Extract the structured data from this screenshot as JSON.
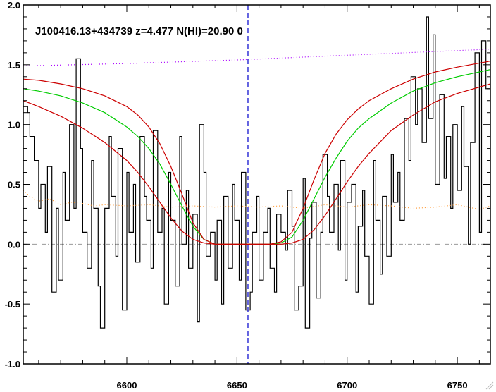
{
  "chart_data": {
    "type": "line",
    "title": "J100416.13+434739 z=4.477 N(HI)=20.90 0",
    "xlabel": "",
    "ylabel": "",
    "xlim": [
      6553,
      6765
    ],
    "ylim": [
      -1.0,
      2.0
    ],
    "x_ticks": [
      6600,
      6650,
      6700,
      6750
    ],
    "y_ticks": [
      -1.0,
      -0.5,
      0.0,
      0.5,
      1.0,
      1.5,
      2.0
    ],
    "y_tick_labels": [
      "-1.0",
      "-0.5",
      "0.0",
      "0.5",
      "1.0",
      "1.5",
      "2.0"
    ],
    "center_line_x": 6655,
    "zero_line_y": 0.0,
    "grid": false,
    "legend": "none",
    "colors": {
      "flux": "#000000",
      "fit": "#00cc00",
      "bounds": "#cc0000",
      "continuum": "#aa00ff",
      "error": "#ff9933",
      "center": "#0000cc",
      "zero": "#999999"
    },
    "series": [
      {
        "style": "step",
        "color": "#000000",
        "x": [
          6553,
          6555,
          6556,
          6558,
          6560,
          6561,
          6563,
          6564,
          6566,
          6568,
          6569,
          6571,
          6572,
          6574,
          6576,
          6577,
          6579,
          6580,
          6582,
          6584,
          6585,
          6587,
          6588,
          6590,
          6592,
          6593,
          6595,
          6596,
          6598,
          6600,
          6601,
          6603,
          6604,
          6606,
          6608,
          6609,
          6611,
          6612,
          6614,
          6616,
          6617,
          6619,
          6620,
          6622,
          6624,
          6625,
          6627,
          6628,
          6630,
          6632,
          6633,
          6635,
          6636,
          6638,
          6640,
          6641,
          6643,
          6644,
          6646,
          6648,
          6649,
          6651,
          6652,
          6654,
          6656,
          6657,
          6659,
          6660,
          6662,
          6664,
          6665,
          6667,
          6668,
          6670,
          6672,
          6673,
          6675,
          6676,
          6678,
          6680,
          6681,
          6683,
          6684,
          6686,
          6688,
          6689,
          6691,
          6692,
          6694,
          6696,
          6697,
          6699,
          6700,
          6702,
          6704,
          6705,
          6707,
          6708,
          6710,
          6712,
          6713,
          6715,
          6716,
          6718,
          6720,
          6721,
          6723,
          6724,
          6726,
          6728,
          6729,
          6731,
          6732,
          6734,
          6736,
          6737,
          6739,
          6740,
          6742,
          6744,
          6745,
          6747,
          6748,
          6750,
          6752,
          6753,
          6755,
          6756,
          6758,
          6760,
          6761,
          6763,
          6765
        ],
        "y": [
          1.15,
          1.1,
          0.9,
          0.7,
          0.3,
          0.5,
          0.1,
          0.65,
          -0.4,
          0.3,
          -0.3,
          0.6,
          0.2,
          1.0,
          0.3,
          1.55,
          0.8,
          0.1,
          -0.2,
          0.7,
          0.3,
          -0.35,
          -0.7,
          0.3,
          0.9,
          0.4,
          -0.1,
          0.8,
          -0.55,
          0.6,
          0.1,
          0.5,
          -0.15,
          0.9,
          0.4,
          0.2,
          -0.2,
          0.95,
          0.1,
          0.3,
          -0.5,
          0.6,
          0.2,
          -0.35,
          0.9,
          0.0,
          0.45,
          -0.2,
          0.25,
          -0.65,
          1.0,
          0.6,
          -0.1,
          0.1,
          -0.3,
          0.2,
          -0.5,
          0.4,
          -0.2,
          0.5,
          0.2,
          -0.3,
          0.6,
          -0.55,
          -0.4,
          0.1,
          0.4,
          -0.3,
          0.1,
          0.3,
          -0.2,
          -0.4,
          0.25,
          0.1,
          -0.05,
          0.45,
          0.15,
          -0.55,
          -0.35,
          0.55,
          -0.7,
          0.05,
          0.35,
          -0.45,
          0.1,
          0.75,
          0.4,
          0.1,
          0.5,
          -0.05,
          0.7,
          -0.3,
          0.35,
          0.5,
          -0.4,
          0.15,
          0.45,
          -0.1,
          -0.5,
          0.7,
          0.2,
          -0.25,
          0.4,
          -0.1,
          0.75,
          0.35,
          0.6,
          0.2,
          1.05,
          0.7,
          1.4,
          1.0,
          1.3,
          0.85,
          1.9,
          1.05,
          1.75,
          0.5,
          1.25,
          0.55,
          0.9,
          0.3,
          1.0,
          0.45,
          1.15,
          0.65,
          0.0,
          0.85,
          1.6,
          0.1,
          1.7,
          1.3,
          1.0
        ]
      },
      {
        "style": "line",
        "color": "#00cc00",
        "x": [
          6553,
          6560,
          6570,
          6580,
          6590,
          6600,
          6605,
          6610,
          6615,
          6620,
          6625,
          6630,
          6635,
          6640,
          6645,
          6650,
          6655,
          6660,
          6665,
          6670,
          6675,
          6680,
          6685,
          6690,
          6695,
          6700,
          6705,
          6710,
          6720,
          6730,
          6740,
          6750,
          6765
        ],
        "y": [
          1.3,
          1.28,
          1.24,
          1.18,
          1.1,
          0.98,
          0.9,
          0.8,
          0.67,
          0.5,
          0.32,
          0.15,
          0.04,
          0.0,
          0.0,
          0.0,
          0.0,
          0.0,
          0.0,
          0.01,
          0.06,
          0.2,
          0.38,
          0.56,
          0.72,
          0.86,
          0.97,
          1.05,
          1.18,
          1.28,
          1.35,
          1.4,
          1.46
        ]
      },
      {
        "style": "line",
        "color": "#cc0000",
        "x": [
          6553,
          6560,
          6570,
          6580,
          6590,
          6600,
          6605,
          6610,
          6615,
          6620,
          6625,
          6630,
          6635,
          6640,
          6645,
          6650,
          6655,
          6660,
          6665,
          6670,
          6675,
          6680,
          6685,
          6690,
          6695,
          6700,
          6705,
          6710,
          6720,
          6730,
          6740,
          6750,
          6765
        ],
        "y": [
          1.38,
          1.37,
          1.34,
          1.3,
          1.24,
          1.15,
          1.08,
          0.98,
          0.84,
          0.65,
          0.42,
          0.18,
          0.04,
          0.0,
          0.0,
          0.0,
          0.0,
          0.0,
          0.0,
          0.02,
          0.1,
          0.3,
          0.54,
          0.76,
          0.92,
          1.04,
          1.13,
          1.2,
          1.3,
          1.38,
          1.44,
          1.48,
          1.53
        ]
      },
      {
        "style": "line",
        "color": "#cc0000",
        "x": [
          6553,
          6560,
          6570,
          6580,
          6590,
          6600,
          6605,
          6610,
          6615,
          6620,
          6625,
          6630,
          6635,
          6640,
          6645,
          6650,
          6655,
          6660,
          6665,
          6670,
          6675,
          6680,
          6685,
          6690,
          6695,
          6700,
          6705,
          6710,
          6720,
          6730,
          6740,
          6750,
          6765
        ],
        "y": [
          1.2,
          1.15,
          1.07,
          0.97,
          0.85,
          0.7,
          0.6,
          0.48,
          0.35,
          0.22,
          0.11,
          0.04,
          0.01,
          0.0,
          0.0,
          0.0,
          0.0,
          0.0,
          0.0,
          0.0,
          0.01,
          0.04,
          0.12,
          0.24,
          0.38,
          0.52,
          0.65,
          0.76,
          0.95,
          1.08,
          1.19,
          1.26,
          1.34
        ]
      },
      {
        "style": "dotted",
        "color": "#aa00ff",
        "x": [
          6553,
          6600,
          6650,
          6700,
          6765
        ],
        "y": [
          1.49,
          1.51,
          1.54,
          1.58,
          1.63
        ]
      },
      {
        "style": "dotted",
        "color": "#ff9933",
        "x": [
          6553,
          6556,
          6560,
          6565,
          6570,
          6575,
          6580,
          6585,
          6590,
          6600,
          6610,
          6620,
          6630,
          6640,
          6650,
          6660,
          6670,
          6680,
          6690,
          6700,
          6710,
          6720,
          6730,
          6740,
          6750,
          6760,
          6765
        ],
        "y": [
          0.45,
          0.4,
          0.36,
          0.38,
          0.33,
          0.35,
          0.34,
          0.32,
          0.33,
          0.32,
          0.33,
          0.31,
          0.32,
          0.31,
          0.32,
          0.31,
          0.32,
          0.3,
          0.33,
          0.31,
          0.33,
          0.32,
          0.3,
          0.31,
          0.33,
          0.29,
          0.32
        ]
      }
    ]
  }
}
